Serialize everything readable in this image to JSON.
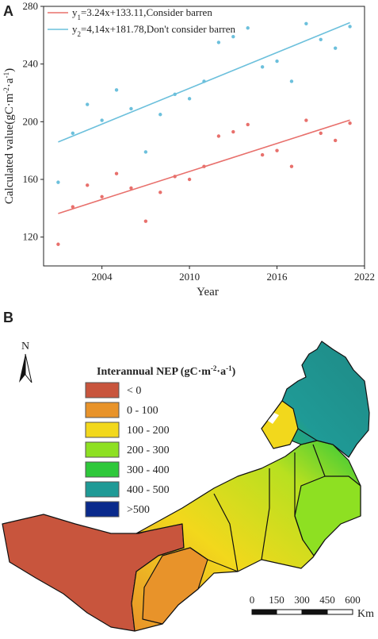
{
  "chart_data": {
    "type": "scatter",
    "panel_label": "A",
    "xlabel": "Year",
    "ylabel_parts": [
      "Calculated value(gC·m",
      "-2",
      "·a",
      "-1",
      ")"
    ],
    "x": [
      2001,
      2002,
      2003,
      2004,
      2005,
      2006,
      2007,
      2008,
      2009,
      2010,
      2011,
      2012,
      2013,
      2014,
      2015,
      2016,
      2017,
      2018,
      2019,
      2020,
      2021
    ],
    "series": [
      {
        "name": "Consider barren",
        "color": "#e8706c",
        "legend_lhs": "y",
        "legend_sub": "1",
        "legend_rhs": "=3.24x+133.11,",
        "slope": 3.24,
        "intercept": 133.11,
        "values": [
          115,
          141,
          156,
          148,
          164,
          154,
          131,
          151,
          162,
          160,
          169,
          190,
          193,
          198,
          177,
          180,
          169,
          201,
          192,
          187,
          199
        ]
      },
      {
        "name": "Don't consider barren",
        "color": "#6cc0dc",
        "legend_lhs": "y",
        "legend_sub": "2",
        "legend_rhs": "=4,14x+181.78,",
        "slope": 4.14,
        "intercept": 181.78,
        "values": [
          158,
          192,
          212,
          201,
          222,
          209,
          179,
          205,
          219,
          216,
          228,
          255,
          259,
          265,
          238,
          242,
          228,
          268,
          257,
          251,
          266
        ]
      }
    ],
    "xlim": [
      2000,
      2022
    ],
    "xticks": [
      2004,
      2010,
      2016,
      2022
    ],
    "ylim": [
      100,
      280
    ],
    "yticks": [
      120,
      160,
      200,
      240,
      280
    ]
  },
  "map": {
    "panel_label": "B",
    "north": "N",
    "legend_title_parts": [
      "Interannual NEP (gC·m",
      "-2",
      "·a",
      "-1",
      ")"
    ],
    "legend": [
      {
        "label": "< 0",
        "color": "#c8553d"
      },
      {
        "label": "0 - 100",
        "color": "#e8932a"
      },
      {
        "label": "100 - 200",
        "color": "#f2d81c"
      },
      {
        "label": "200 - 300",
        "color": "#8ee022"
      },
      {
        "label": "300 - 400",
        "color": "#2ec83a"
      },
      {
        "label": "400 - 500",
        "color": "#1f9a96"
      },
      {
        "label": ">500",
        "color": "#0a2a8c"
      }
    ],
    "scale_ticks": [
      "0",
      "150",
      "300",
      "450",
      "600"
    ],
    "scale_unit": "Km"
  }
}
